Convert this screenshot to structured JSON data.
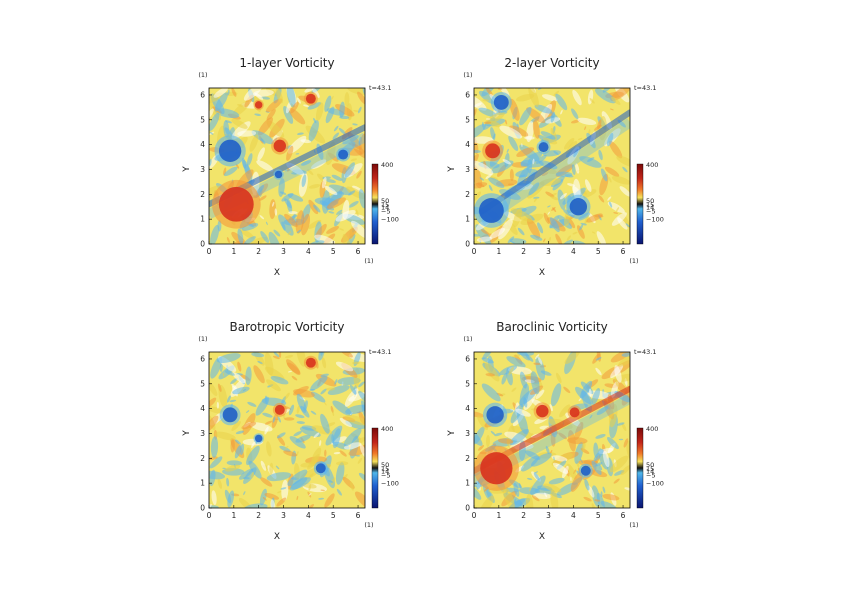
{
  "chart_data": [
    {
      "type": "heatmap",
      "title": "1-layer Vorticity",
      "xlabel": "X",
      "ylabel": "Y",
      "x_unit": "(1)",
      "y_unit": "(1)",
      "xlim": [
        0,
        6.28
      ],
      "ylim": [
        0,
        6.28
      ],
      "x_ticks": [
        "0",
        "1",
        "2",
        "3",
        "4",
        "5",
        "6"
      ],
      "y_ticks": [
        "0",
        "1",
        "2",
        "3",
        "4",
        "5",
        "6"
      ],
      "time_label": "t=43.1",
      "colorbar_labels": [
        "400",
        "50",
        "15",
        "14",
        "−5",
        "−100"
      ],
      "features": [
        {
          "x": 0.85,
          "y": 3.75,
          "sign": "neg",
          "r": 0.45
        },
        {
          "x": 2.85,
          "y": 3.95,
          "sign": "pos",
          "r": 0.25
        },
        {
          "x": 4.1,
          "y": 5.85,
          "sign": "pos",
          "r": 0.2
        },
        {
          "x": 1.1,
          "y": 1.6,
          "sign": "pos",
          "r": 0.7
        },
        {
          "x": 2.0,
          "y": 5.6,
          "sign": "pos",
          "r": 0.15
        },
        {
          "x": 2.8,
          "y": 2.8,
          "sign": "neg",
          "r": 0.15
        },
        {
          "x": 5.4,
          "y": 3.6,
          "sign": "neg",
          "r": 0.2
        }
      ],
      "band": {
        "x1": 0.0,
        "y1": 1.6,
        "x2": 6.28,
        "y2": 4.7,
        "sign": "neg"
      }
    },
    {
      "type": "heatmap",
      "title": "2-layer Vorticity",
      "xlabel": "X",
      "ylabel": "Y",
      "x_unit": "(1)",
      "y_unit": "(1)",
      "xlim": [
        0,
        6.28
      ],
      "ylim": [
        0,
        6.28
      ],
      "x_ticks": [
        "0",
        "1",
        "2",
        "3",
        "4",
        "5",
        "6"
      ],
      "y_ticks": [
        "0",
        "1",
        "2",
        "3",
        "4",
        "5",
        "6"
      ],
      "time_label": "t=43.1",
      "colorbar_labels": [
        "400",
        "50",
        "15",
        "14",
        "−5",
        "−100"
      ],
      "features": [
        {
          "x": 0.75,
          "y": 3.75,
          "sign": "pos",
          "r": 0.3
        },
        {
          "x": 0.7,
          "y": 1.35,
          "sign": "neg",
          "r": 0.5
        },
        {
          "x": 4.2,
          "y": 1.5,
          "sign": "neg",
          "r": 0.35
        },
        {
          "x": 2.8,
          "y": 3.9,
          "sign": "neg",
          "r": 0.2
        },
        {
          "x": 1.1,
          "y": 5.7,
          "sign": "neg",
          "r": 0.3
        }
      ],
      "band": {
        "x1": 0.3,
        "y1": 1.3,
        "x2": 6.28,
        "y2": 5.3,
        "sign": "neg"
      }
    },
    {
      "type": "heatmap",
      "title": "Barotropic Vorticity",
      "xlabel": "X",
      "ylabel": "Y",
      "x_unit": "(1)",
      "y_unit": "(1)",
      "xlim": [
        0,
        6.28
      ],
      "ylim": [
        0,
        6.28
      ],
      "x_ticks": [
        "0",
        "1",
        "2",
        "3",
        "4",
        "5",
        "6"
      ],
      "y_ticks": [
        "0",
        "1",
        "2",
        "3",
        "4",
        "5",
        "6"
      ],
      "time_label": "t=43.1",
      "colorbar_labels": [
        "400",
        "50",
        "15",
        "14",
        "−5",
        "−100"
      ],
      "features": [
        {
          "x": 0.85,
          "y": 3.75,
          "sign": "neg",
          "r": 0.3
        },
        {
          "x": 2.85,
          "y": 3.95,
          "sign": "pos",
          "r": 0.2
        },
        {
          "x": 4.1,
          "y": 5.85,
          "sign": "pos",
          "r": 0.2
        },
        {
          "x": 4.5,
          "y": 1.6,
          "sign": "neg",
          "r": 0.2
        },
        {
          "x": 2.0,
          "y": 2.8,
          "sign": "neg",
          "r": 0.15
        }
      ],
      "band": null
    },
    {
      "type": "heatmap",
      "title": "Baroclinic Vorticity",
      "xlabel": "X",
      "ylabel": "Y",
      "x_unit": "(1)",
      "y_unit": "(1)",
      "xlim": [
        0,
        6.28
      ],
      "ylim": [
        0,
        6.28
      ],
      "x_ticks": [
        "0",
        "1",
        "2",
        "3",
        "4",
        "5",
        "6"
      ],
      "y_ticks": [
        "0",
        "1",
        "2",
        "3",
        "4",
        "5",
        "6"
      ],
      "time_label": "t=43.1",
      "colorbar_labels": [
        "400",
        "50",
        "15",
        "14",
        "−5",
        "−100"
      ],
      "features": [
        {
          "x": 0.85,
          "y": 3.75,
          "sign": "neg",
          "r": 0.35
        },
        {
          "x": 2.75,
          "y": 3.9,
          "sign": "pos",
          "r": 0.25
        },
        {
          "x": 4.05,
          "y": 3.85,
          "sign": "pos",
          "r": 0.2
        },
        {
          "x": 0.9,
          "y": 1.6,
          "sign": "pos",
          "r": 0.65
        },
        {
          "x": 4.5,
          "y": 1.5,
          "sign": "neg",
          "r": 0.2
        }
      ],
      "band": {
        "x1": 0.0,
        "y1": 1.5,
        "x2": 6.28,
        "y2": 4.8,
        "sign": "pos"
      }
    }
  ],
  "colors": {
    "background_field": "#f2e46a",
    "positive": "#d8321e",
    "negative": "#1f5fc8",
    "light_negative": "#5fb7ec"
  }
}
